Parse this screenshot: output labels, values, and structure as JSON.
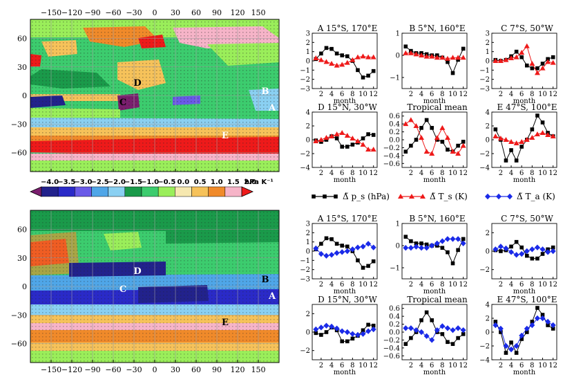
{
  "figure": {
    "colorbar": {
      "labels": [
        "−4.0",
        "−3.5",
        "−3.0",
        "−2.5",
        "−2.0",
        "−1.5",
        "−1.0",
        "−0.5",
        "0.0",
        "0.5",
        "1.0",
        "1.5",
        "2.0"
      ],
      "unit": "hPa K⁻¹",
      "colors": [
        "#7a1e6e",
        "#22228c",
        "#2a2ac8",
        "#6a5ae8",
        "#4fa6e8",
        "#8ad0f2",
        "#1a9a4a",
        "#3ccc6e",
        "#9aee5a",
        "#f6e8b0",
        "#f6c25a",
        "#f08a2a",
        "#f6b4c8",
        "#ee1a1a"
      ]
    },
    "maps": [
      {
        "id": "top",
        "x_ticks": [
          "−150",
          "−120",
          "−90",
          "−60",
          "−30",
          "0",
          "30",
          "60",
          "90",
          "120",
          "150"
        ],
        "y_ticks": [
          "60",
          "30",
          "0",
          "−30",
          "−60"
        ],
        "site_labels": [
          "D",
          "B",
          "C",
          "A",
          "E"
        ]
      },
      {
        "id": "bottom",
        "x_ticks": [
          "−150",
          "−120",
          "−90",
          "−60",
          "−30",
          "0",
          "30",
          "60",
          "90",
          "120",
          "150"
        ],
        "y_ticks": [
          "60",
          "30",
          "0",
          "−30",
          "−60"
        ],
        "site_labels": [
          "D",
          "B",
          "C",
          "A",
          "E"
        ]
      }
    ],
    "legend": {
      "items": [
        {
          "label": "Δ̃ p_s (hPa)",
          "color": "#000000",
          "marker": "square"
        },
        {
          "label": "Δ̃ T_s (K)",
          "color": "#ee1a1a",
          "marker": "triangle"
        },
        {
          "label": "Δ̃ T_a (K)",
          "color": "#1a2ae8",
          "marker": "diamond"
        }
      ]
    },
    "xlabel": "month"
  },
  "chart_data": [
    {
      "type": "line",
      "group": "top",
      "title": "A 15°S, 170°E",
      "x": [
        1,
        2,
        3,
        4,
        5,
        6,
        7,
        8,
        9,
        10,
        11,
        12
      ],
      "ylim": [
        -3,
        3
      ],
      "yticks": [
        "3",
        "2",
        "1",
        "0",
        "−1",
        "−2",
        "−3"
      ],
      "series": [
        {
          "name": "ps",
          "values": [
            0.2,
            0.8,
            1.4,
            1.3,
            0.8,
            0.6,
            0.5,
            0.0,
            -1.0,
            -1.8,
            -1.6,
            -1.1
          ]
        },
        {
          "name": "Ts",
          "values": [
            0.3,
            0.1,
            -0.1,
            -0.3,
            -0.5,
            -0.4,
            -0.2,
            0.1,
            0.4,
            0.5,
            0.4,
            0.4
          ]
        }
      ]
    },
    {
      "type": "line",
      "group": "top",
      "title": "B 5°N, 160°E",
      "x": [
        1,
        2,
        3,
        4,
        5,
        6,
        7,
        8,
        9,
        10,
        11,
        12
      ],
      "ylim": [
        -1.5,
        1
      ],
      "yticks": [
        "1",
        "0",
        "−1"
      ],
      "series": [
        {
          "name": "ps",
          "values": [
            0.4,
            0.2,
            0.1,
            0.1,
            0.05,
            0.0,
            0.0,
            -0.1,
            -0.3,
            -0.8,
            -0.2,
            0.3
          ]
        },
        {
          "name": "Ts",
          "values": [
            0.1,
            0.1,
            0.05,
            0.0,
            -0.05,
            -0.05,
            -0.1,
            -0.1,
            -0.15,
            -0.1,
            -0.1,
            -0.1
          ]
        }
      ]
    },
    {
      "type": "line",
      "group": "top",
      "title": "C 7°S, 50°W",
      "x": [
        1,
        2,
        3,
        4,
        5,
        6,
        7,
        8,
        9,
        10,
        11,
        12
      ],
      "ylim": [
        -3,
        3
      ],
      "yticks": [
        "3",
        "2",
        "1",
        "0",
        "−1",
        "−2",
        "−3"
      ],
      "series": [
        {
          "name": "ps",
          "values": [
            0.1,
            0.0,
            0.1,
            0.5,
            1.0,
            0.4,
            -0.5,
            -0.8,
            -0.8,
            -0.3,
            0.2,
            0.4
          ]
        },
        {
          "name": "Ts",
          "values": [
            0.0,
            0.0,
            0.1,
            0.3,
            0.4,
            0.9,
            1.6,
            -0.3,
            -1.3,
            -0.8,
            -0.1,
            -0.2
          ]
        }
      ]
    },
    {
      "type": "line",
      "group": "top",
      "title": "D 15°N, 30°W",
      "x": [
        1,
        2,
        3,
        4,
        5,
        6,
        7,
        8,
        9,
        10,
        11,
        12
      ],
      "ylim": [
        -4,
        4
      ],
      "yticks": [
        "4",
        "2",
        "0",
        "−2",
        "−4"
      ],
      "series": [
        {
          "name": "ps",
          "values": [
            -0.1,
            -0.3,
            0.0,
            0.5,
            0.2,
            -1.0,
            -1.0,
            -0.7,
            -0.4,
            0.2,
            0.8,
            0.7
          ]
        },
        {
          "name": "Ts",
          "values": [
            -0.2,
            0.0,
            0.3,
            0.5,
            0.8,
            1.0,
            0.6,
            0.2,
            -0.2,
            -0.7,
            -1.4,
            -1.4
          ]
        }
      ]
    },
    {
      "type": "line",
      "group": "top",
      "title": "Tropical mean",
      "x": [
        1,
        2,
        3,
        4,
        5,
        6,
        7,
        8,
        9,
        10,
        11,
        12
      ],
      "ylim": [
        -0.7,
        0.7
      ],
      "yticks": [
        "0.6",
        "0.4",
        "0.2",
        "0.0",
        "−0.2",
        "−0.4",
        "−0.6"
      ],
      "series": [
        {
          "name": "ps",
          "values": [
            -0.3,
            -0.15,
            0.0,
            0.3,
            0.5,
            0.3,
            0.0,
            -0.05,
            -0.25,
            -0.3,
            -0.15,
            -0.05
          ]
        },
        {
          "name": "Ts",
          "values": [
            0.4,
            0.5,
            0.35,
            0.05,
            -0.3,
            -0.35,
            0.05,
            0.3,
            0.05,
            -0.3,
            -0.35,
            -0.15
          ]
        }
      ]
    },
    {
      "type": "line",
      "group": "top",
      "title": "E 47°S, 100°E",
      "x": [
        1,
        2,
        3,
        4,
        5,
        6,
        7,
        8,
        9,
        10,
        11,
        12
      ],
      "ylim": [
        -4,
        4
      ],
      "yticks": [
        "4",
        "2",
        "0",
        "−2",
        "−4"
      ],
      "series": [
        {
          "name": "ps",
          "values": [
            1.5,
            0.0,
            -3.0,
            -1.5,
            -3.0,
            -1.0,
            0.0,
            1.5,
            3.5,
            2.5,
            1.0,
            0.5
          ]
        },
        {
          "name": "Ts",
          "values": [
            0.5,
            0.2,
            0.0,
            -0.3,
            -0.5,
            -0.3,
            0.0,
            0.3,
            0.8,
            1.0,
            0.7,
            0.5
          ]
        }
      ]
    },
    {
      "type": "line",
      "group": "bottom",
      "title": "A 15°S, 170°E",
      "x": [
        1,
        2,
        3,
        4,
        5,
        6,
        7,
        8,
        9,
        10,
        11,
        12
      ],
      "ylim": [
        -3,
        3
      ],
      "yticks": [
        "3",
        "2",
        "1",
        "0",
        "−1",
        "−2",
        "−3"
      ],
      "series": [
        {
          "name": "ps",
          "values": [
            0.2,
            0.8,
            1.4,
            1.3,
            0.8,
            0.6,
            0.5,
            0.0,
            -1.0,
            -1.8,
            -1.6,
            -1.1
          ]
        },
        {
          "name": "Ta",
          "values": [
            0.3,
            -0.3,
            -0.5,
            -0.4,
            -0.2,
            -0.1,
            0.0,
            0.2,
            0.4,
            0.5,
            0.8,
            0.4
          ]
        }
      ]
    },
    {
      "type": "line",
      "group": "bottom",
      "title": "B 5°N, 160°E",
      "x": [
        1,
        2,
        3,
        4,
        5,
        6,
        7,
        8,
        9,
        10,
        11,
        12
      ],
      "ylim": [
        -1.5,
        1
      ],
      "yticks": [
        "1",
        "0",
        "−1"
      ],
      "series": [
        {
          "name": "ps",
          "values": [
            0.4,
            0.2,
            0.1,
            0.1,
            0.05,
            0.0,
            0.0,
            -0.1,
            -0.3,
            -0.8,
            -0.2,
            0.3
          ]
        },
        {
          "name": "Ta",
          "values": [
            -0.1,
            -0.1,
            -0.05,
            -0.1,
            -0.1,
            0.0,
            0.1,
            0.2,
            0.3,
            0.3,
            0.3,
            0.1
          ]
        }
      ]
    },
    {
      "type": "line",
      "group": "bottom",
      "title": "C 7°S, 50°W",
      "x": [
        1,
        2,
        3,
        4,
        5,
        6,
        7,
        8,
        9,
        10,
        11,
        12
      ],
      "ylim": [
        -3,
        3
      ],
      "yticks": [
        "2",
        "0",
        "−2"
      ],
      "series": [
        {
          "name": "ps",
          "values": [
            0.1,
            0.0,
            0.1,
            0.5,
            1.0,
            0.4,
            -0.5,
            -0.8,
            -0.8,
            -0.3,
            0.2,
            0.4
          ]
        },
        {
          "name": "Ta",
          "values": [
            0.2,
            0.5,
            0.3,
            -0.1,
            -0.4,
            -0.3,
            0.0,
            0.2,
            0.4,
            0.2,
            -0.1,
            0.0
          ]
        }
      ]
    },
    {
      "type": "line",
      "group": "bottom",
      "title": "D 15°N, 30°W",
      "x": [
        1,
        2,
        3,
        4,
        5,
        6,
        7,
        8,
        9,
        10,
        11,
        12
      ],
      "ylim": [
        -3,
        3
      ],
      "yticks": [
        "2",
        "0",
        "−2"
      ],
      "series": [
        {
          "name": "ps",
          "values": [
            -0.1,
            -0.3,
            0.0,
            0.5,
            0.2,
            -1.0,
            -1.0,
            -0.7,
            -0.4,
            0.2,
            0.8,
            0.7
          ]
        },
        {
          "name": "Ta",
          "values": [
            0.3,
            0.5,
            0.7,
            0.6,
            0.4,
            0.1,
            0.0,
            -0.2,
            -0.3,
            -0.2,
            0.1,
            0.3
          ]
        }
      ]
    },
    {
      "type": "line",
      "group": "bottom",
      "title": "Tropical mean",
      "x": [
        1,
        2,
        3,
        4,
        5,
        6,
        7,
        8,
        9,
        10,
        11,
        12
      ],
      "ylim": [
        -0.7,
        0.7
      ],
      "yticks": [
        "0.6",
        "0.4",
        "0.2",
        "0.0",
        "−0.2",
        "−0.4",
        "−0.6"
      ],
      "series": [
        {
          "name": "ps",
          "values": [
            -0.3,
            -0.15,
            0.0,
            0.3,
            0.5,
            0.3,
            0.0,
            -0.05,
            -0.25,
            -0.3,
            -0.15,
            -0.05
          ]
        },
        {
          "name": "Ta",
          "values": [
            0.1,
            0.1,
            0.05,
            0.0,
            -0.1,
            -0.2,
            0.05,
            0.15,
            0.1,
            0.05,
            0.1,
            0.05
          ]
        }
      ]
    },
    {
      "type": "line",
      "group": "bottom",
      "title": "E 47°S, 100°E",
      "x": [
        1,
        2,
        3,
        4,
        5,
        6,
        7,
        8,
        9,
        10,
        11,
        12
      ],
      "ylim": [
        -4,
        4
      ],
      "yticks": [
        "4",
        "2",
        "0",
        "−2",
        "−4"
      ],
      "series": [
        {
          "name": "ps",
          "values": [
            1.5,
            0.0,
            -3.0,
            -1.5,
            -3.0,
            -1.0,
            0.0,
            1.5,
            3.5,
            2.5,
            1.0,
            0.5
          ]
        },
        {
          "name": "Ta",
          "values": [
            1.0,
            0.5,
            -2.0,
            -2.5,
            -2.0,
            -0.5,
            0.5,
            1.0,
            2.0,
            2.0,
            1.5,
            1.0
          ]
        }
      ]
    }
  ]
}
